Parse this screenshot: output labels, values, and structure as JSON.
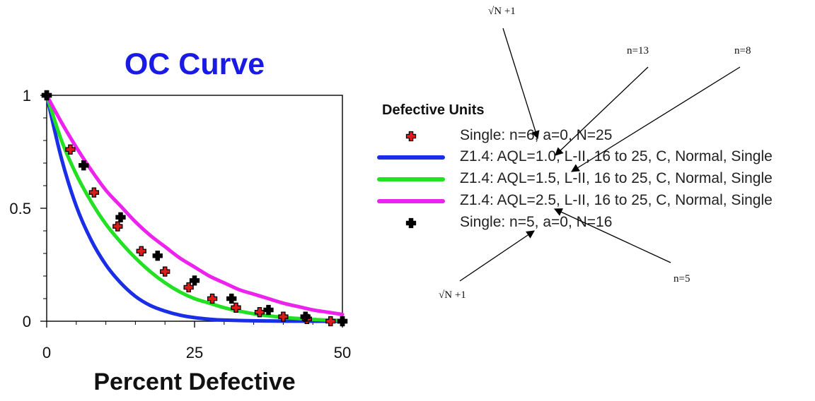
{
  "chart_data": {
    "type": "line",
    "title": "OC Curve",
    "xlabel": "Percent Defective",
    "ylabel": "",
    "xlim": [
      0,
      50
    ],
    "ylim": [
      0,
      1
    ],
    "xticks": [
      0,
      25,
      50
    ],
    "yticks": [
      0,
      0.5,
      1
    ],
    "grid": false,
    "legend_title": "Defective Units",
    "legend_position": "right",
    "colors": {
      "title": "#1a1ae6",
      "red_marker": "#e01a1a",
      "blue": "#1a2ee8",
      "green": "#22e022",
      "magenta": "#ee22ee",
      "black_marker": "#000000"
    },
    "series": [
      {
        "name": "Single: n=6, a=0, N=25",
        "kind": "marker",
        "marker_color": "red",
        "points": [
          [
            0,
            1.0
          ],
          [
            4,
            0.76
          ],
          [
            8,
            0.57
          ],
          [
            12,
            0.42
          ],
          [
            16,
            0.31
          ],
          [
            20,
            0.22
          ],
          [
            24,
            0.15
          ],
          [
            28,
            0.1
          ],
          [
            32,
            0.06
          ],
          [
            36,
            0.04
          ],
          [
            40,
            0.02
          ],
          [
            44,
            0.01
          ],
          [
            48,
            0.0
          ],
          [
            50,
            0.0
          ]
        ]
      },
      {
        "name": "Z1.4: AQL=1.0, L-II, 16 to 25, C, Normal, Single",
        "kind": "line",
        "line_color": "blue",
        "points": [
          [
            0,
            1.0
          ],
          [
            2.5,
            0.72
          ],
          [
            5,
            0.51
          ],
          [
            7.5,
            0.36
          ],
          [
            10,
            0.25
          ],
          [
            12.5,
            0.17
          ],
          [
            15,
            0.11
          ],
          [
            17.5,
            0.07
          ],
          [
            20,
            0.045
          ],
          [
            22.5,
            0.027
          ],
          [
            25,
            0.016
          ],
          [
            27.5,
            0.009
          ],
          [
            30,
            0.005
          ],
          [
            35,
            0.002
          ],
          [
            40,
            0.0005
          ],
          [
            45,
            0.0001
          ],
          [
            50,
            0.0
          ]
        ]
      },
      {
        "name": "Z1.4: AQL=1.5, L-II, 16 to 25, C, Normal, Single",
        "kind": "line",
        "line_color": "green",
        "points": [
          [
            0,
            1.0
          ],
          [
            2.5,
            0.8
          ],
          [
            5,
            0.65
          ],
          [
            7.5,
            0.53
          ],
          [
            10,
            0.43
          ],
          [
            12.5,
            0.35
          ],
          [
            15,
            0.28
          ],
          [
            17.5,
            0.22
          ],
          [
            20,
            0.17
          ],
          [
            22.5,
            0.13
          ],
          [
            25,
            0.1
          ],
          [
            27.5,
            0.08
          ],
          [
            30,
            0.06
          ],
          [
            32.5,
            0.045
          ],
          [
            35,
            0.033
          ],
          [
            37.5,
            0.024
          ],
          [
            40,
            0.017
          ],
          [
            42.5,
            0.012
          ],
          [
            45,
            0.008
          ],
          [
            47.5,
            0.005
          ],
          [
            50,
            0.003
          ]
        ]
      },
      {
        "name": "Z1.4: AQL=2.5, L-II, 16 to 25, C, Normal, Single",
        "kind": "line",
        "line_color": "magenta",
        "points": [
          [
            0,
            1.0
          ],
          [
            2.5,
            0.88
          ],
          [
            5,
            0.77
          ],
          [
            7.5,
            0.67
          ],
          [
            10,
            0.58
          ],
          [
            12.5,
            0.51
          ],
          [
            15,
            0.44
          ],
          [
            17.5,
            0.38
          ],
          [
            20,
            0.33
          ],
          [
            22.5,
            0.28
          ],
          [
            25,
            0.24
          ],
          [
            27.5,
            0.2
          ],
          [
            30,
            0.17
          ],
          [
            32.5,
            0.14
          ],
          [
            35,
            0.12
          ],
          [
            37.5,
            0.1
          ],
          [
            40,
            0.08
          ],
          [
            42.5,
            0.065
          ],
          [
            45,
            0.05
          ],
          [
            47.5,
            0.04
          ],
          [
            50,
            0.03
          ]
        ]
      },
      {
        "name": "Single: n=5, a=0, N=16",
        "kind": "marker",
        "marker_color": "black",
        "points": [
          [
            0,
            1.0
          ],
          [
            6.25,
            0.69
          ],
          [
            12.5,
            0.46
          ],
          [
            18.75,
            0.29
          ],
          [
            25,
            0.18
          ],
          [
            31.25,
            0.1
          ],
          [
            37.5,
            0.05
          ],
          [
            43.75,
            0.02
          ],
          [
            50,
            0.0
          ]
        ]
      }
    ],
    "annotations": [
      {
        "text": "√N +1",
        "label_at": "top-center"
      },
      {
        "text": "n=13",
        "label_at": "upper-right"
      },
      {
        "text": "n=8",
        "label_at": "upper-right-edge"
      },
      {
        "text": "n=5",
        "label_at": "lower-right"
      },
      {
        "text": "√N +1",
        "label_at": "lower-left"
      }
    ]
  }
}
